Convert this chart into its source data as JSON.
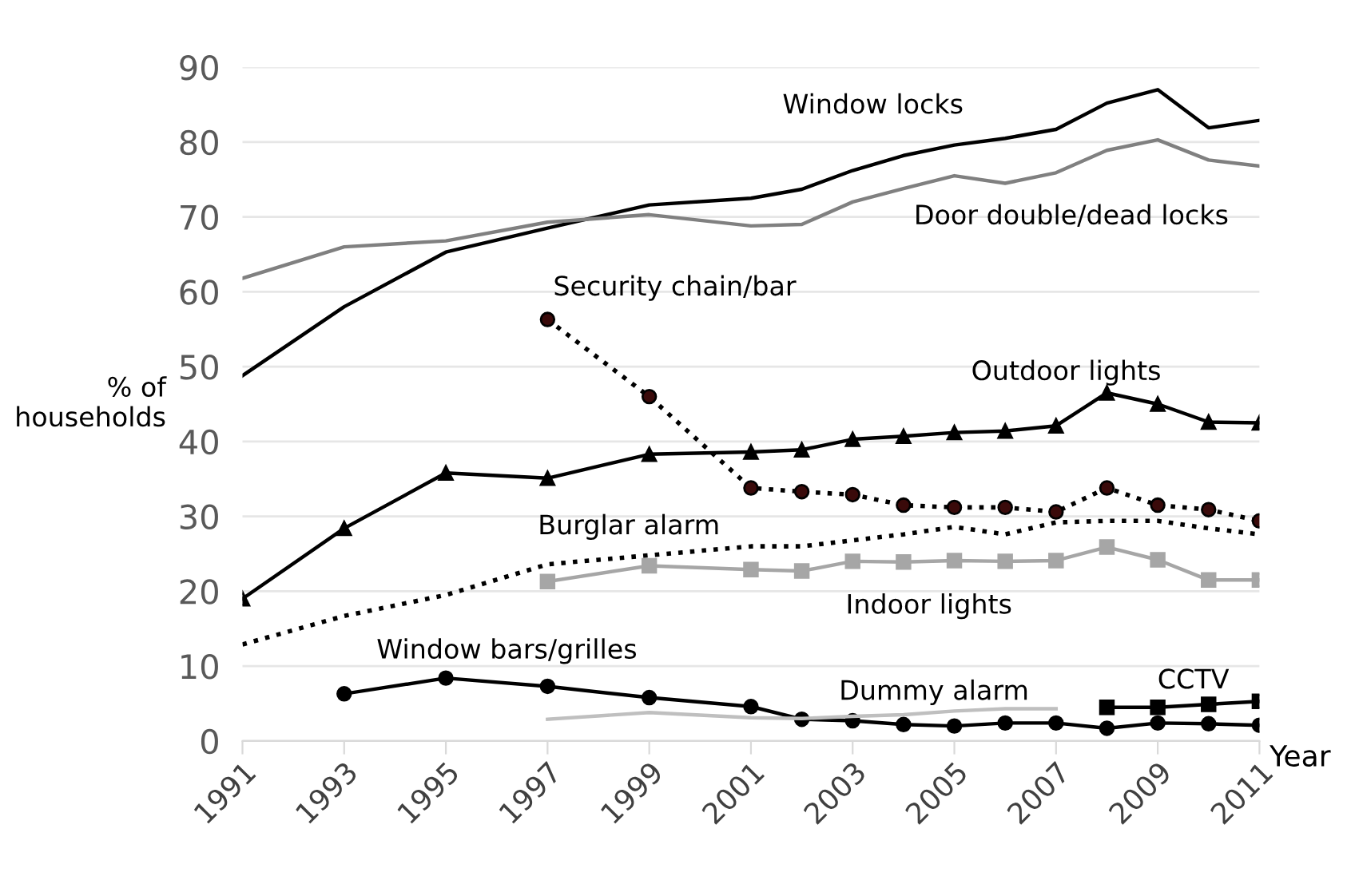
{
  "chart_data": {
    "type": "line",
    "ylabel": "% of\nhouseholds",
    "xlabel": "Year",
    "xlim": [
      1991,
      2011
    ],
    "xticks": [
      1991,
      1993,
      1995,
      1997,
      1999,
      2001,
      2003,
      2005,
      2007,
      2009,
      2011
    ],
    "ylim": [
      0,
      90
    ],
    "yticks": [
      0,
      10,
      20,
      30,
      40,
      50,
      60,
      70,
      80,
      90
    ],
    "grid": "y",
    "legend": false,
    "x": [
      1991,
      1993,
      1995,
      1997,
      1999,
      2001,
      2002,
      2003,
      2004,
      2005,
      2006,
      2007,
      2008,
      2009,
      2010,
      2011
    ],
    "series": [
      {
        "name": "Window locks",
        "color": "#000000",
        "marker": "none",
        "line_style": "solid",
        "values": [
          48.8,
          58,
          65.3,
          68.5,
          71.6,
          72.5,
          73.7,
          76.2,
          78.2,
          79.6,
          80.5,
          81.7,
          85.2,
          87,
          81.9,
          82.9
        ]
      },
      {
        "name": "Door double/dead locks",
        "color": "#808080",
        "marker": "none",
        "line_style": "solid",
        "values": [
          61.8,
          66,
          66.8,
          69.3,
          70.3,
          68.8,
          69,
          72,
          73.8,
          75.5,
          74.5,
          75.9,
          78.9,
          80.3,
          77.6,
          76.8
        ]
      },
      {
        "name": "Security chain/bar",
        "color": "#000000",
        "marker": "circle",
        "line_style": "dotted",
        "values": [
          null,
          null,
          null,
          56.3,
          46,
          33.8,
          33.3,
          32.9,
          31.5,
          31.2,
          31.2,
          30.6,
          33.8,
          31.5,
          30.9,
          29.4
        ]
      },
      {
        "name": "Outdoor lights",
        "color": "#000000",
        "marker": "triangle",
        "line_style": "solid",
        "values": [
          19,
          28.4,
          35.8,
          35.1,
          38.3,
          38.6,
          38.9,
          40.3,
          40.7,
          41.2,
          41.4,
          42.1,
          46.5,
          45,
          42.6,
          42.5
        ]
      },
      {
        "name": "Burglar alarm",
        "color": "#000000",
        "marker": "none",
        "line_style": "dotted",
        "values": [
          12.9,
          16.7,
          19.5,
          23.6,
          24.8,
          26,
          26,
          26.8,
          27.6,
          28.6,
          27.6,
          29.2,
          29.4,
          29.4,
          28.4,
          27.6
        ]
      },
      {
        "name": "Indoor lights",
        "color": "#a6a6a6",
        "marker": "square",
        "line_style": "solid",
        "values": [
          null,
          null,
          null,
          21.3,
          23.4,
          22.9,
          22.7,
          24,
          23.9,
          24.1,
          24,
          24.1,
          25.9,
          24.2,
          21.5,
          21.5
        ]
      },
      {
        "name": "Window bars/grilles",
        "color": "#000000",
        "marker": "circle",
        "line_style": "solid",
        "values": [
          null,
          6.3,
          8.4,
          7.3,
          5.8,
          4.6,
          2.9,
          2.7,
          2.2,
          2,
          2.4,
          2.4,
          1.7,
          2.4,
          2.3,
          2.1
        ]
      },
      {
        "name": "Dummy alarm",
        "color": "#bfbfbf",
        "marker": "none",
        "line_style": "solid",
        "values": [
          null,
          null,
          null,
          2.9,
          3.8,
          3.1,
          3.0,
          3.3,
          3.5,
          4.0,
          4.3,
          4.3,
          null,
          null,
          null,
          null
        ]
      },
      {
        "name": "CCTV",
        "color": "#000000",
        "marker": "square",
        "line_style": "solid",
        "values": [
          null,
          null,
          null,
          null,
          null,
          null,
          null,
          null,
          null,
          null,
          null,
          null,
          4.5,
          4.5,
          4.9,
          5.3
        ]
      }
    ]
  }
}
